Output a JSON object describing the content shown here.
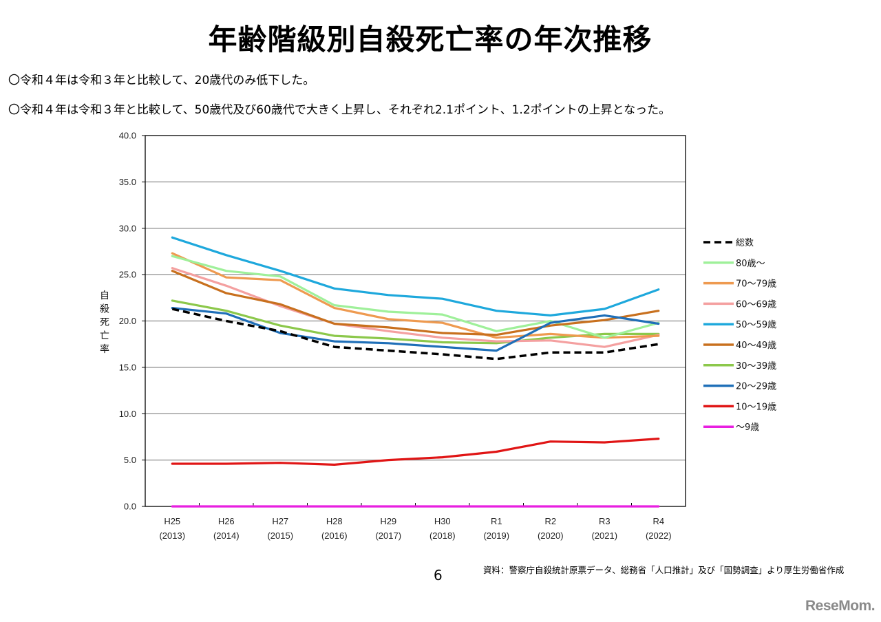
{
  "page": {
    "title": "年齢階級別自殺死亡率の年次推移",
    "bullets": [
      "〇令和４年は令和３年と比較して、20歳代のみ低下した。",
      "〇令和４年は令和３年と比較して、50歳代及び60歳代で大きく上昇し、それぞれ2.1ポイント、1.2ポイントの上昇となった。"
    ],
    "page_number": "6",
    "source": "資料：警察庁自殺統計原票データ、総務省「人口推計」及び「国勢調査」より厚生労働省作成",
    "watermark": "ReseMom."
  },
  "chart_data": {
    "type": "line",
    "title": "",
    "xlabel": "",
    "ylabel": "自殺死亡率",
    "ylim": [
      0,
      40
    ],
    "ytick_step": 5,
    "yticks": [
      "0.0",
      "5.0",
      "10.0",
      "15.0",
      "20.0",
      "25.0",
      "30.0",
      "35.0",
      "40.0"
    ],
    "grid": true,
    "legend_position": "right",
    "categories": [
      {
        "line1": "H25",
        "line2": "(2013)"
      },
      {
        "line1": "H26",
        "line2": "(2014)"
      },
      {
        "line1": "H27",
        "line2": "(2015)"
      },
      {
        "line1": "H28",
        "line2": "(2016)"
      },
      {
        "line1": "H29",
        "line2": "(2017)"
      },
      {
        "line1": "H30",
        "line2": "(2018)"
      },
      {
        "line1": "R1",
        "line2": "(2019)"
      },
      {
        "line1": "R2",
        "line2": "(2020)"
      },
      {
        "line1": "R3",
        "line2": "(2021)"
      },
      {
        "line1": "R4",
        "line2": "(2022)"
      }
    ],
    "series": [
      {
        "name": "〜9歳",
        "color": "#e81fe0",
        "dashed": false,
        "values": [
          0.0,
          0.0,
          0.0,
          0.0,
          0.0,
          0.0,
          0.0,
          0.0,
          0.0,
          0.0
        ]
      },
      {
        "name": "10〜19歳",
        "color": "#e01515",
        "dashed": false,
        "values": [
          4.6,
          4.6,
          4.7,
          4.5,
          5.0,
          5.3,
          5.9,
          7.0,
          6.9,
          7.3
        ]
      },
      {
        "name": "30〜39歳",
        "color": "#8cc84b",
        "dashed": false,
        "values": [
          22.2,
          21.1,
          19.5,
          18.4,
          18.1,
          17.7,
          17.6,
          18.2,
          18.6,
          18.6
        ]
      },
      {
        "name": "60〜69歳",
        "color": "#f4a0a0",
        "dashed": false,
        "values": [
          25.7,
          23.8,
          21.6,
          19.7,
          18.9,
          18.2,
          17.8,
          17.9,
          17.2,
          18.5
        ]
      },
      {
        "name": "70〜79歳",
        "color": "#ee9a50",
        "dashed": false,
        "values": [
          27.3,
          24.7,
          24.4,
          21.4,
          20.2,
          19.8,
          18.2,
          18.6,
          18.2,
          18.4
        ]
      },
      {
        "name": "80歳〜",
        "color": "#9ff09a",
        "dashed": false,
        "values": [
          27.0,
          25.4,
          24.8,
          21.7,
          21.0,
          20.7,
          18.9,
          20.0,
          18.2,
          19.8
        ]
      },
      {
        "name": "40〜49歳",
        "color": "#c8701e",
        "dashed": false,
        "values": [
          25.4,
          23.0,
          21.8,
          19.7,
          19.3,
          18.7,
          18.5,
          19.5,
          20.1,
          21.1
        ]
      },
      {
        "name": "50〜59歳",
        "color": "#1ea8dc",
        "dashed": false,
        "values": [
          29.0,
          27.1,
          25.4,
          23.5,
          22.8,
          22.4,
          21.1,
          20.6,
          21.3,
          23.4
        ]
      },
      {
        "name": "20〜29歳",
        "color": "#1f6fb8",
        "dashed": false,
        "values": [
          21.4,
          20.8,
          18.7,
          17.8,
          17.6,
          17.2,
          16.8,
          19.8,
          20.6,
          19.7
        ]
      },
      {
        "name": "総数",
        "color": "#000000",
        "dashed": true,
        "values": [
          21.3,
          20.0,
          18.9,
          17.2,
          16.8,
          16.4,
          15.9,
          16.6,
          16.6,
          17.5
        ]
      }
    ],
    "legend_order": [
      "総数",
      "80歳〜",
      "70〜79歳",
      "60〜69歳",
      "50〜59歳",
      "40〜49歳",
      "30〜39歳",
      "20〜29歳",
      "10〜19歳",
      "〜9歳"
    ]
  }
}
